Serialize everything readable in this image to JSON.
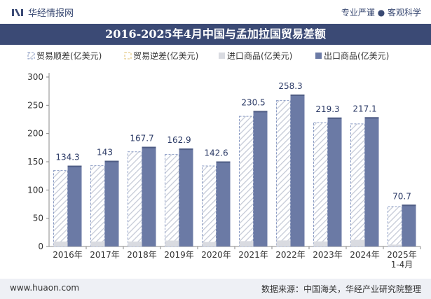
{
  "header": {
    "brand": "华经情报网",
    "tagline": "专业严谨 ● 客观科学"
  },
  "footer": {
    "website": "www.huaon.com",
    "source": "数据来源：中国海关，华经产业研究院整理"
  },
  "colors": {
    "header_bg": "#3b4a75",
    "export": "#6b7aa5",
    "import": "#d9dbe1",
    "surplus_outline": "#8a9bc4",
    "hatch": "#c4c9d6"
  },
  "chart_data": {
    "type": "bar",
    "title": "2016-2025年4月中国与孟加拉国贸易差额",
    "legend": [
      "贸易顺差(亿美元)",
      "贸易逆差(亿美元)",
      "进口商品(亿美元)",
      "出口商品(亿美元)"
    ],
    "legend_position": "top",
    "categories": [
      "2016年",
      "2017年",
      "2018年",
      "2019年",
      "2020年",
      "2021年",
      "2022年",
      "2023年",
      "2024年",
      "2025年\n1-4月"
    ],
    "series": [
      {
        "name": "贸易顺差(亿美元)",
        "values": [
          134.3,
          143,
          167.7,
          162.9,
          142.6,
          230.5,
          258.3,
          219.3,
          217.1,
          70.7
        ]
      },
      {
        "name": "贸易逆差(亿美元)",
        "values": [
          0,
          0,
          0,
          0,
          0,
          0,
          0,
          0,
          0,
          0
        ]
      },
      {
        "name": "进口商品(亿美元)",
        "values": [
          8.8,
          8.8,
          8.8,
          10.5,
          8.0,
          9.5,
          10.7,
          9.0,
          11.8,
          3.3
        ]
      },
      {
        "name": "出口商品(亿美元)",
        "values": [
          143.1,
          151.8,
          176.5,
          173.4,
          150.6,
          240.0,
          269.0,
          228.3,
          228.9,
          74.0
        ]
      }
    ],
    "ylim": [
      0,
      300
    ],
    "yticks": [
      0,
      50,
      100,
      150,
      200,
      250,
      300
    ],
    "grid": false
  }
}
